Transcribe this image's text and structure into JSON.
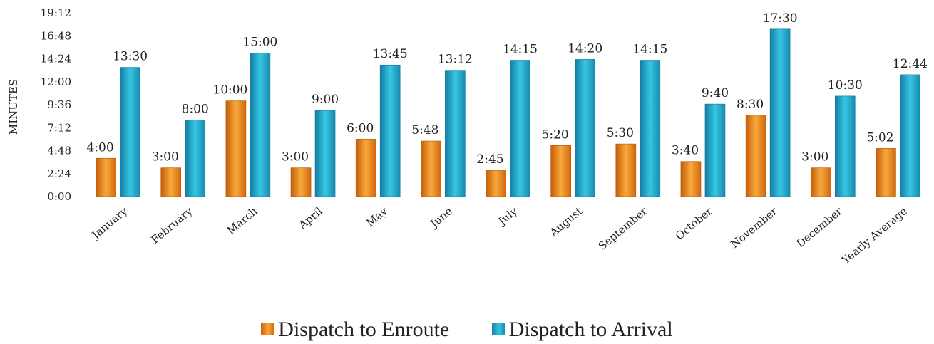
{
  "chart_data": {
    "type": "bar",
    "ylabel": "MINUTES",
    "y_ticks": [
      "0:00",
      "2:24",
      "4:48",
      "7:12",
      "9:36",
      "12:00",
      "14:24",
      "16:48",
      "19:12"
    ],
    "ylim": [
      0,
      1152
    ],
    "grid": false,
    "legend_position": "bottom",
    "categories": [
      "January",
      "February",
      "March",
      "April",
      "May",
      "June",
      "July",
      "August",
      "September",
      "October",
      "November",
      "December",
      "Yearly Average"
    ],
    "series": [
      {
        "name": "Dispatch to Enroute",
        "color": "#f19a30",
        "values": [
          240,
          180,
          600,
          180,
          360,
          348,
          165,
          320,
          330,
          220,
          510,
          180,
          302
        ],
        "labels": [
          "4:00",
          "3:00",
          "10:00",
          "3:00",
          "6:00",
          "5:48",
          "2:45",
          "5:20",
          "5:30",
          "3:40",
          "8:30",
          "3:00",
          "5:02"
        ]
      },
      {
        "name": "Dispatch to Arrival",
        "color": "#29b2d6",
        "values": [
          810,
          480,
          900,
          540,
          825,
          792,
          855,
          860,
          855,
          580,
          1050,
          630,
          764
        ],
        "labels": [
          "13:30",
          "8:00",
          "15:00",
          "9:00",
          "13:45",
          "13:12",
          "14:15",
          "14:20",
          "14:15",
          "9:40",
          "17:30",
          "10:30",
          "12:44"
        ]
      }
    ]
  }
}
